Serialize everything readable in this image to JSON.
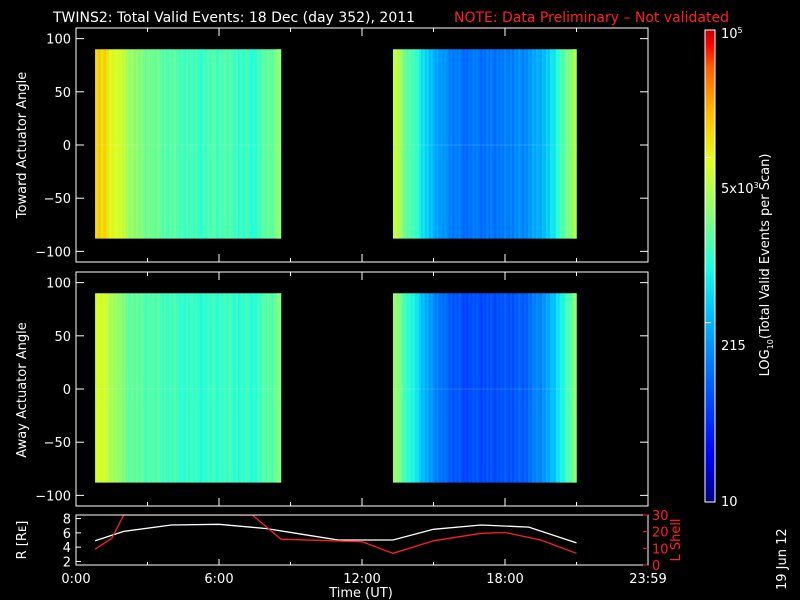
{
  "header": {
    "title": "TWINS2: Total Valid Events: 18 Dec (day 352), 2011",
    "note": "NOTE: Data Preliminary – Not validated"
  },
  "footer": {
    "date_stamp": "19 Jun 12"
  },
  "chart_data": [
    {
      "type": "heatmap",
      "name": "toward",
      "ylabel": "Toward Actuator Angle",
      "ylim": [
        -110,
        110
      ],
      "yticks": [
        "100",
        "50",
        "0",
        "−50",
        "−100"
      ],
      "ytick_values": [
        100,
        50,
        0,
        -50,
        -100
      ],
      "xlim": [
        0,
        24
      ],
      "angle_range": [
        -88,
        90
      ],
      "segments": [
        {
          "t_start": 0.8,
          "t_end": 8.6,
          "columns": [
            {
              "t": 0.8,
              "level": 0.8
            },
            {
              "t": 1.5,
              "level": 0.74
            },
            {
              "t": 2.0,
              "level": 0.66
            },
            {
              "t": 2.6,
              "level": 0.6
            },
            {
              "t": 3.2,
              "level": 0.58
            },
            {
              "t": 3.8,
              "level": 0.56
            },
            {
              "t": 4.4,
              "level": 0.55
            },
            {
              "t": 5.0,
              "level": 0.52
            },
            {
              "t": 5.6,
              "level": 0.54
            },
            {
              "t": 6.2,
              "level": 0.55
            },
            {
              "t": 6.8,
              "level": 0.53
            },
            {
              "t": 7.4,
              "level": 0.52
            },
            {
              "t": 8.0,
              "level": 0.56
            },
            {
              "t": 8.6,
              "level": 0.62
            }
          ]
        },
        {
          "t_start": 13.3,
          "t_end": 21.0,
          "columns": [
            {
              "t": 13.3,
              "level": 0.7
            },
            {
              "t": 13.8,
              "level": 0.58
            },
            {
              "t": 14.3,
              "level": 0.5
            },
            {
              "t": 14.8,
              "level": 0.4
            },
            {
              "t": 15.3,
              "level": 0.34
            },
            {
              "t": 15.8,
              "level": 0.3
            },
            {
              "t": 16.3,
              "level": 0.28
            },
            {
              "t": 16.8,
              "level": 0.28
            },
            {
              "t": 17.3,
              "level": 0.28
            },
            {
              "t": 17.8,
              "level": 0.29
            },
            {
              "t": 18.3,
              "level": 0.31
            },
            {
              "t": 18.8,
              "level": 0.33
            },
            {
              "t": 19.3,
              "level": 0.36
            },
            {
              "t": 19.8,
              "level": 0.42
            },
            {
              "t": 20.3,
              "level": 0.54
            },
            {
              "t": 21.0,
              "level": 0.66
            }
          ]
        }
      ]
    },
    {
      "type": "heatmap",
      "name": "away",
      "ylabel": "Away Actuator Angle",
      "ylim": [
        -110,
        110
      ],
      "yticks": [
        "100",
        "50",
        "0",
        "−50",
        "−100"
      ],
      "ytick_values": [
        100,
        50,
        0,
        -50,
        -100
      ],
      "xlim": [
        0,
        24
      ],
      "angle_range": [
        -88,
        90
      ],
      "segments": [
        {
          "t_start": 0.8,
          "t_end": 8.6,
          "columns": [
            {
              "t": 0.8,
              "level": 0.72
            },
            {
              "t": 1.5,
              "level": 0.66
            },
            {
              "t": 2.0,
              "level": 0.58
            },
            {
              "t": 2.6,
              "level": 0.56
            },
            {
              "t": 3.2,
              "level": 0.55
            },
            {
              "t": 3.8,
              "level": 0.54
            },
            {
              "t": 4.4,
              "level": 0.53
            },
            {
              "t": 5.0,
              "level": 0.51
            },
            {
              "t": 5.6,
              "level": 0.52
            },
            {
              "t": 6.2,
              "level": 0.53
            },
            {
              "t": 6.8,
              "level": 0.52
            },
            {
              "t": 7.4,
              "level": 0.52
            },
            {
              "t": 8.0,
              "level": 0.55
            },
            {
              "t": 8.6,
              "level": 0.6
            }
          ]
        },
        {
          "t_start": 13.3,
          "t_end": 21.0,
          "columns": [
            {
              "t": 13.3,
              "level": 0.64
            },
            {
              "t": 13.8,
              "level": 0.54
            },
            {
              "t": 14.3,
              "level": 0.44
            },
            {
              "t": 14.8,
              "level": 0.34
            },
            {
              "t": 15.3,
              "level": 0.28
            },
            {
              "t": 15.8,
              "level": 0.24
            },
            {
              "t": 16.3,
              "level": 0.22
            },
            {
              "t": 16.8,
              "level": 0.22
            },
            {
              "t": 17.3,
              "level": 0.22
            },
            {
              "t": 17.8,
              "level": 0.23
            },
            {
              "t": 18.3,
              "level": 0.24
            },
            {
              "t": 18.8,
              "level": 0.26
            },
            {
              "t": 19.3,
              "level": 0.3
            },
            {
              "t": 19.8,
              "level": 0.36
            },
            {
              "t": 20.3,
              "level": 0.48
            },
            {
              "t": 21.0,
              "level": 0.62
            }
          ]
        }
      ]
    },
    {
      "type": "line",
      "name": "orbit",
      "ylabel": "R [Rᴇ]",
      "y2label": "L Shell",
      "ylim": [
        1.5,
        8.5
      ],
      "y2lim": [
        0,
        30
      ],
      "yticks": [
        2,
        4,
        6,
        8
      ],
      "y2ticks": [
        0,
        10,
        20,
        30
      ],
      "xlabel": "Time (UT)",
      "xlim": [
        0,
        24
      ],
      "xticks": [
        "0:00",
        "6:00",
        "12:00",
        "18:00",
        "23:59"
      ],
      "xtick_values": [
        0,
        6,
        12,
        18,
        24
      ],
      "series": [
        {
          "axis": "left",
          "color": "#ffffff",
          "points": [
            [
              0.8,
              4.9
            ],
            [
              2.0,
              6.2
            ],
            [
              4.0,
              7.1
            ],
            [
              6.0,
              7.2
            ],
            [
              8.0,
              6.6
            ],
            [
              9.5,
              5.8
            ],
            [
              11.0,
              5.0
            ],
            [
              13.3,
              5.0
            ],
            [
              15.0,
              6.5
            ],
            [
              17.0,
              7.1
            ],
            [
              19.0,
              6.8
            ],
            [
              21.0,
              4.6
            ]
          ]
        },
        {
          "axis": "right",
          "color": "#ff2020",
          "points": [
            [
              0.8,
              9.5
            ],
            [
              1.5,
              16
            ],
            [
              2.0,
              30
            ],
            [
              7.4,
              30
            ],
            [
              8.6,
              15.5
            ],
            [
              12.0,
              14
            ],
            [
              13.3,
              7
            ],
            [
              15.0,
              14.5
            ],
            [
              17.0,
              19
            ],
            [
              18.0,
              19.5
            ],
            [
              19.5,
              15
            ],
            [
              21.0,
              7
            ]
          ]
        }
      ]
    }
  ],
  "colorbar": {
    "label_main": "LOG",
    "label_sub": "10",
    "label_rest": "(Total Valid Events per Scan)",
    "tick_top_base": "10",
    "tick_top_exp": "5",
    "tick_5k_base": "5x10",
    "tick_5k_exp": "3",
    "tick_215": "215",
    "tick_10": "10",
    "tick_levels": [
      1.0,
      0.73,
      0.38,
      0.0
    ],
    "colors": [
      "#00007f",
      "#0000ff",
      "#0060ff",
      "#00c0ff",
      "#20ffe0",
      "#80ff80",
      "#e0ff20",
      "#ffc000",
      "#ff6000",
      "#ff0000",
      "#c00000"
    ]
  }
}
